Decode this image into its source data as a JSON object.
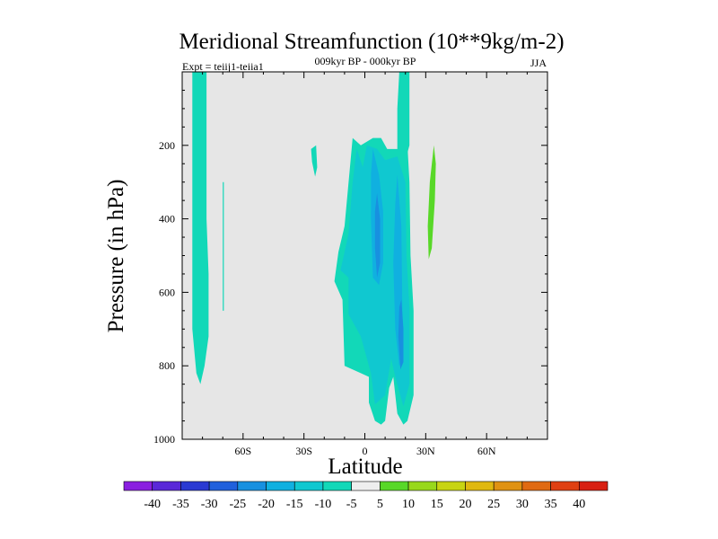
{
  "chart_data": {
    "type": "contour",
    "title": "Meridional Streamfunction (10**9kg/m-2)",
    "subtitle": "009kyr BP - 000kyr BP",
    "experiment": "Expt = teiij1-teiia1",
    "season": "JJA",
    "xlabel": "Latitude",
    "ylabel": "Pressure (in hPa)",
    "xlim": [
      -90,
      90
    ],
    "ylim": [
      1000,
      0
    ],
    "y_inverted": true,
    "x_ticks": [
      {
        "value": -60,
        "label": "60S"
      },
      {
        "value": -30,
        "label": "30S"
      },
      {
        "value": 0,
        "label": "0"
      },
      {
        "value": 30,
        "label": "30N"
      },
      {
        "value": 60,
        "label": "60N"
      }
    ],
    "y_ticks": [
      {
        "value": 200,
        "label": "200"
      },
      {
        "value": 400,
        "label": "400"
      },
      {
        "value": 600,
        "label": "600"
      },
      {
        "value": 800,
        "label": "800"
      },
      {
        "value": 1000,
        "label": "1000"
      }
    ],
    "background_color": "#e6e6e6",
    "colorbar": {
      "labels": [
        "-40",
        "-35",
        "-30",
        "-25",
        "-20",
        "-15",
        "-10",
        "-5",
        "5",
        "10",
        "15",
        "20",
        "25",
        "30",
        "35",
        "40"
      ],
      "colors": [
        "#8a1fe0",
        "#5a28d8",
        "#2a3ad2",
        "#2060dc",
        "#1890e0",
        "#10b0e0",
        "#10c8d0",
        "#12d8b8",
        "#eeeeee",
        "#58d828",
        "#98d81c",
        "#c8d412",
        "#e0b810",
        "#e09212",
        "#e06a12",
        "#e04012",
        "#d82012"
      ]
    },
    "regions": [
      {
        "name": "sh-high-lat-column",
        "value_range": [
          -10,
          -5
        ],
        "color": "#12d8b8",
        "points": [
          [
            -85,
            0
          ],
          [
            -78,
            0
          ],
          [
            -78,
            200
          ],
          [
            -78,
            400
          ],
          [
            -77,
            550
          ],
          [
            -77,
            720
          ],
          [
            -79,
            800
          ],
          [
            -81,
            850
          ],
          [
            -83,
            820
          ],
          [
            -85,
            700
          ],
          [
            -85,
            400
          ]
        ]
      },
      {
        "name": "sh-thin-strip",
        "value_range": [
          -10,
          -5
        ],
        "color": "#12d8b8",
        "points": [
          [
            -70,
            300
          ],
          [
            -69.5,
            300
          ],
          [
            -69.5,
            650
          ],
          [
            -70,
            650
          ]
        ]
      },
      {
        "name": "mid-lat-blob",
        "value_range": [
          -10,
          -5
        ],
        "color": "#12d8b8",
        "points": [
          [
            -26.5,
            210
          ],
          [
            -24,
            200
          ],
          [
            -23.5,
            260
          ],
          [
            -24.5,
            285
          ],
          [
            -26,
            245
          ]
        ]
      },
      {
        "name": "tropical-cell-outer",
        "value_range": [
          -10,
          -5
        ],
        "color": "#12d8b8",
        "points": [
          [
            -6,
            180
          ],
          [
            -2,
            200
          ],
          [
            4,
            180
          ],
          [
            8,
            180
          ],
          [
            11,
            210
          ],
          [
            16,
            210
          ],
          [
            21,
            200
          ],
          [
            22,
            300
          ],
          [
            22.5,
            500
          ],
          [
            24,
            650
          ],
          [
            24,
            880
          ],
          [
            21,
            950
          ],
          [
            19,
            960
          ],
          [
            16,
            930
          ],
          [
            14,
            830
          ],
          [
            12,
            860
          ],
          [
            10,
            950
          ],
          [
            8,
            960
          ],
          [
            5,
            950
          ],
          [
            2,
            900
          ],
          [
            2,
            830
          ],
          [
            -2,
            820
          ],
          [
            -10,
            800
          ],
          [
            -11,
            620
          ],
          [
            -15,
            570
          ],
          [
            -13,
            490
          ],
          [
            -10,
            420
          ],
          [
            -8,
            300
          ]
        ]
      },
      {
        "name": "tropical-cell-inner",
        "value_range": [
          -15,
          -10
        ],
        "color": "#10c8d0",
        "points": [
          [
            -4,
            210
          ],
          [
            -1,
            260
          ],
          [
            1,
            200
          ],
          [
            6,
            210
          ],
          [
            10,
            240
          ],
          [
            16,
            230
          ],
          [
            20,
            300
          ],
          [
            20.5,
            500
          ],
          [
            22,
            640
          ],
          [
            22,
            850
          ],
          [
            19,
            910
          ],
          [
            15,
            830
          ],
          [
            13,
            780
          ],
          [
            10,
            880
          ],
          [
            5,
            905
          ],
          [
            3,
            820
          ],
          [
            -2,
            720
          ],
          [
            -8,
            660
          ],
          [
            -8,
            560
          ],
          [
            -12,
            540
          ],
          [
            -8,
            440
          ],
          [
            -6,
            300
          ]
        ]
      },
      {
        "name": "tropical-cell-core-1",
        "value_range": [
          -20,
          -15
        ],
        "color": "#10b0e0",
        "points": [
          [
            4,
            210
          ],
          [
            7,
            280
          ],
          [
            9,
            380
          ],
          [
            9,
            520
          ],
          [
            7,
            580
          ],
          [
            4,
            560
          ],
          [
            3,
            400
          ],
          [
            3,
            280
          ]
        ]
      },
      {
        "name": "tropical-cell-core-2",
        "value_range": [
          -20,
          -15
        ],
        "color": "#10b0e0",
        "points": [
          [
            16,
            280
          ],
          [
            18,
            420
          ],
          [
            18.5,
            650
          ],
          [
            19,
            780
          ],
          [
            17,
            800
          ],
          [
            15,
            700
          ],
          [
            14,
            520
          ],
          [
            15,
            360
          ]
        ]
      },
      {
        "name": "tropical-cell-deep-core",
        "value_range": [
          -25,
          -20
        ],
        "color": "#1890e0",
        "points": [
          [
            6,
            330
          ],
          [
            7.5,
            400
          ],
          [
            7.5,
            520
          ],
          [
            6,
            560
          ],
          [
            5,
            480
          ],
          [
            5,
            380
          ]
        ]
      },
      {
        "name": "tropical-cell-deep-core-2",
        "value_range": [
          -25,
          -20
        ],
        "color": "#1890e0",
        "points": [
          [
            18,
            620
          ],
          [
            19,
            700
          ],
          [
            19,
            790
          ],
          [
            17.5,
            810
          ],
          [
            16.5,
            720
          ],
          [
            17,
            640
          ]
        ]
      },
      {
        "name": "nh-upper-column",
        "value_range": [
          -10,
          -5
        ],
        "color": "#12d8b8",
        "points": [
          [
            17,
            0
          ],
          [
            22,
            0
          ],
          [
            22,
            200
          ],
          [
            21,
            220
          ],
          [
            16,
            210
          ],
          [
            16,
            100
          ]
        ]
      },
      {
        "name": "nh-positive-strip",
        "value_range": [
          5,
          10
        ],
        "color": "#58d828",
        "points": [
          [
            34,
            200
          ],
          [
            35,
            250
          ],
          [
            34.5,
            350
          ],
          [
            33,
            480
          ],
          [
            31.5,
            510
          ],
          [
            31,
            420
          ],
          [
            32,
            300
          ]
        ]
      }
    ]
  }
}
